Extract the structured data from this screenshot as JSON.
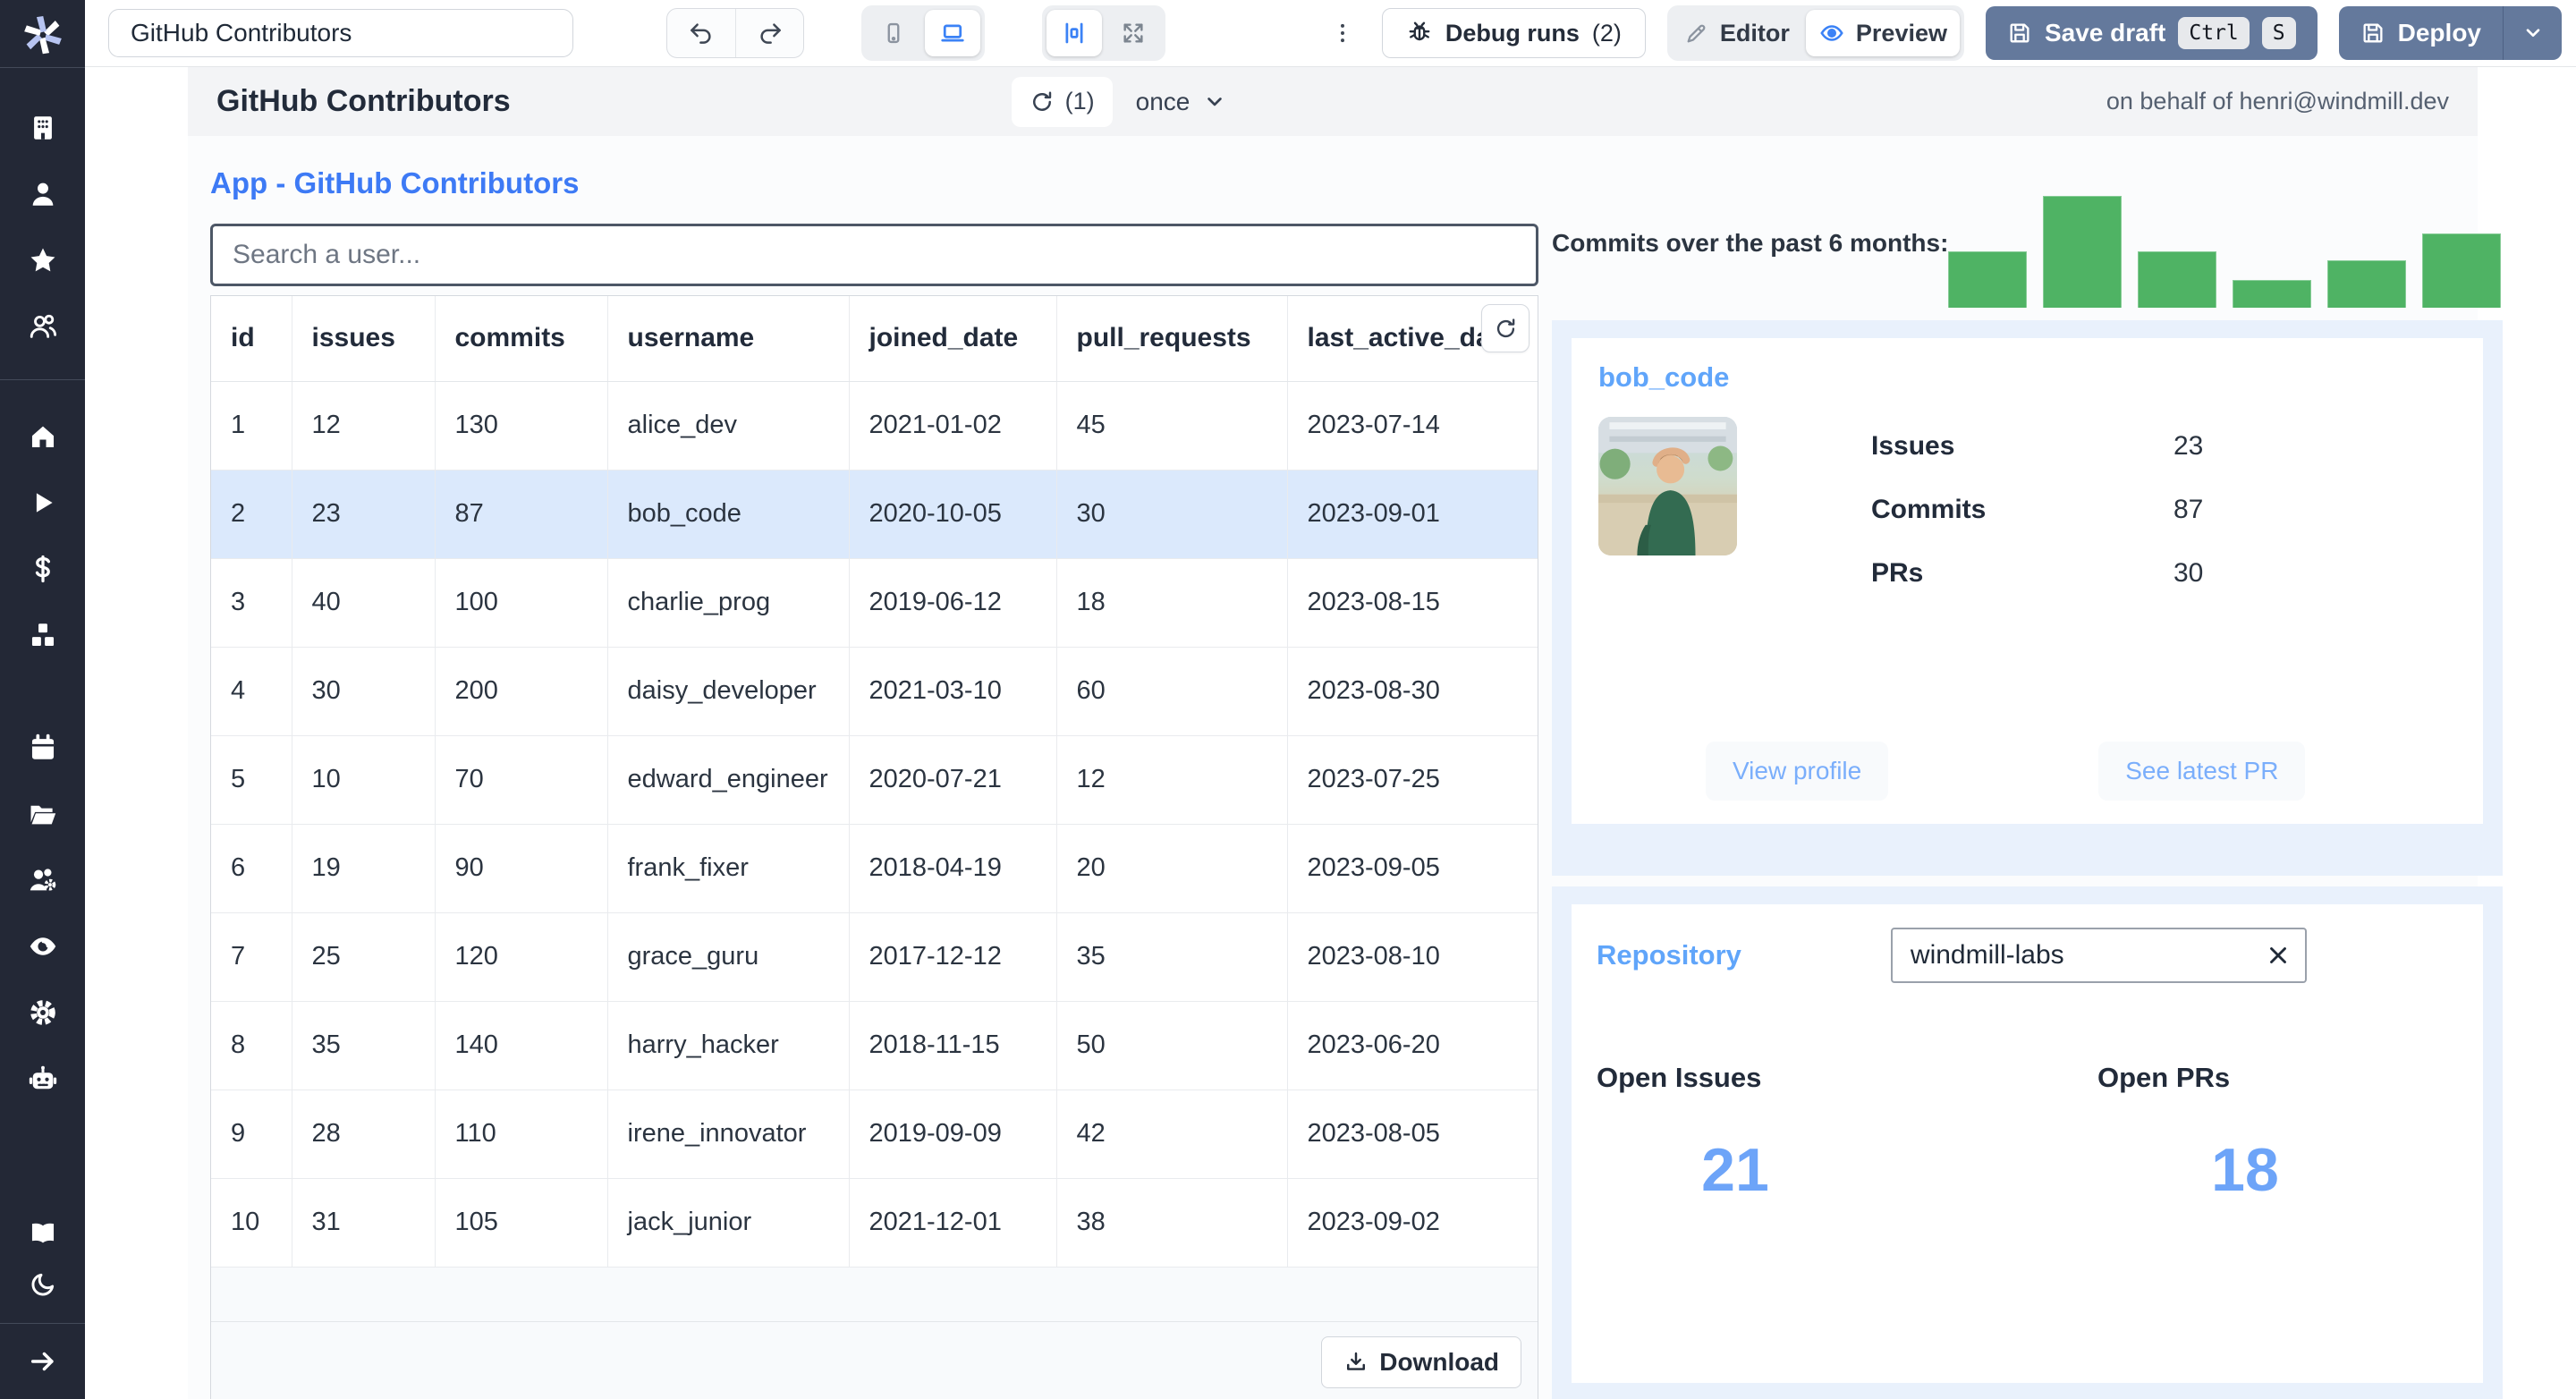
{
  "toolbar": {
    "app_title_value": "GitHub Contributors",
    "debug_runs_label": "Debug runs",
    "debug_runs_count": "(2)",
    "editor_label": "Editor",
    "preview_label": "Preview",
    "save_draft_label": "Save draft",
    "kbd_ctrl": "Ctrl",
    "kbd_s": "S",
    "deploy_label": "Deploy"
  },
  "sidebar": {
    "icons": [
      "windmill-logo",
      "building",
      "user",
      "star",
      "users",
      "home",
      "play",
      "dollar-sign",
      "boxes",
      "calendar",
      "folder-open",
      "users-settings",
      "eye",
      "settings",
      "robot",
      "book-open",
      "moon",
      "arrow-right"
    ]
  },
  "header": {
    "title": "GitHub Contributors",
    "refresh_count": "(1)",
    "schedule_label": "once",
    "on_behalf": "on behalf of henri@windmill.dev"
  },
  "main": {
    "app_heading": "App - GitHub Contributors",
    "search_placeholder": "Search a user...",
    "download_label": "Download"
  },
  "table": {
    "columns": [
      "id",
      "issues",
      "commits",
      "username",
      "joined_date",
      "pull_requests",
      "last_active_date"
    ],
    "selected_row_id": 2,
    "rows": [
      {
        "id": 1,
        "issues": 12,
        "commits": 130,
        "username": "alice_dev",
        "joined_date": "2021-01-02",
        "pull_requests": 45,
        "last_active_date": "2023-07-14"
      },
      {
        "id": 2,
        "issues": 23,
        "commits": 87,
        "username": "bob_code",
        "joined_date": "2020-10-05",
        "pull_requests": 30,
        "last_active_date": "2023-09-01"
      },
      {
        "id": 3,
        "issues": 40,
        "commits": 100,
        "username": "charlie_prog",
        "joined_date": "2019-06-12",
        "pull_requests": 18,
        "last_active_date": "2023-08-15"
      },
      {
        "id": 4,
        "issues": 30,
        "commits": 200,
        "username": "daisy_developer",
        "joined_date": "2021-03-10",
        "pull_requests": 60,
        "last_active_date": "2023-08-30"
      },
      {
        "id": 5,
        "issues": 10,
        "commits": 70,
        "username": "edward_engineer",
        "joined_date": "2020-07-21",
        "pull_requests": 12,
        "last_active_date": "2023-07-25"
      },
      {
        "id": 6,
        "issues": 19,
        "commits": 90,
        "username": "frank_fixer",
        "joined_date": "2018-04-19",
        "pull_requests": 20,
        "last_active_date": "2023-09-05"
      },
      {
        "id": 7,
        "issues": 25,
        "commits": 120,
        "username": "grace_guru",
        "joined_date": "2017-12-12",
        "pull_requests": 35,
        "last_active_date": "2023-08-10"
      },
      {
        "id": 8,
        "issues": 35,
        "commits": 140,
        "username": "harry_hacker",
        "joined_date": "2018-11-15",
        "pull_requests": 50,
        "last_active_date": "2023-06-20"
      },
      {
        "id": 9,
        "issues": 28,
        "commits": 110,
        "username": "irene_innovator",
        "joined_date": "2019-09-09",
        "pull_requests": 42,
        "last_active_date": "2023-08-05"
      },
      {
        "id": 10,
        "issues": 31,
        "commits": 105,
        "username": "jack_junior",
        "joined_date": "2021-12-01",
        "pull_requests": 38,
        "last_active_date": "2023-09-02"
      }
    ]
  },
  "chart_data": {
    "type": "bar",
    "title": "Commits over the past 6 months:",
    "values": [
      50,
      100,
      50,
      25,
      42,
      66
    ],
    "ylim": [
      0,
      100
    ],
    "axis_labels_visible": false,
    "note": "values are estimated relative bar heights (% of tallest bar); no tick labels shown in UI",
    "bar_color": "#4fb364",
    "legend": "none",
    "grid": false
  },
  "user_card": {
    "username": "bob_code",
    "stats": [
      {
        "label": "Issues",
        "value": "23"
      },
      {
        "label": "Commits",
        "value": "87"
      },
      {
        "label": "PRs",
        "value": "30"
      }
    ],
    "view_profile_label": "View profile",
    "see_latest_pr_label": "See latest PR"
  },
  "repo_card": {
    "title": "Repository",
    "input_value": "windmill-labs",
    "open_issues_label": "Open Issues",
    "open_prs_label": "Open PRs",
    "open_issues_value": "21",
    "open_prs_value": "18"
  },
  "colors": {
    "accent_blue": "#3d7af5",
    "light_blue_text": "#60a5fa",
    "big_number_blue": "#6da4f8",
    "panel_blue": "#e9f1fc",
    "selected_row": "#dbe9fc",
    "bar_green": "#4fb364",
    "slate_button": "#64799c",
    "sidebar_bg": "#232836"
  }
}
